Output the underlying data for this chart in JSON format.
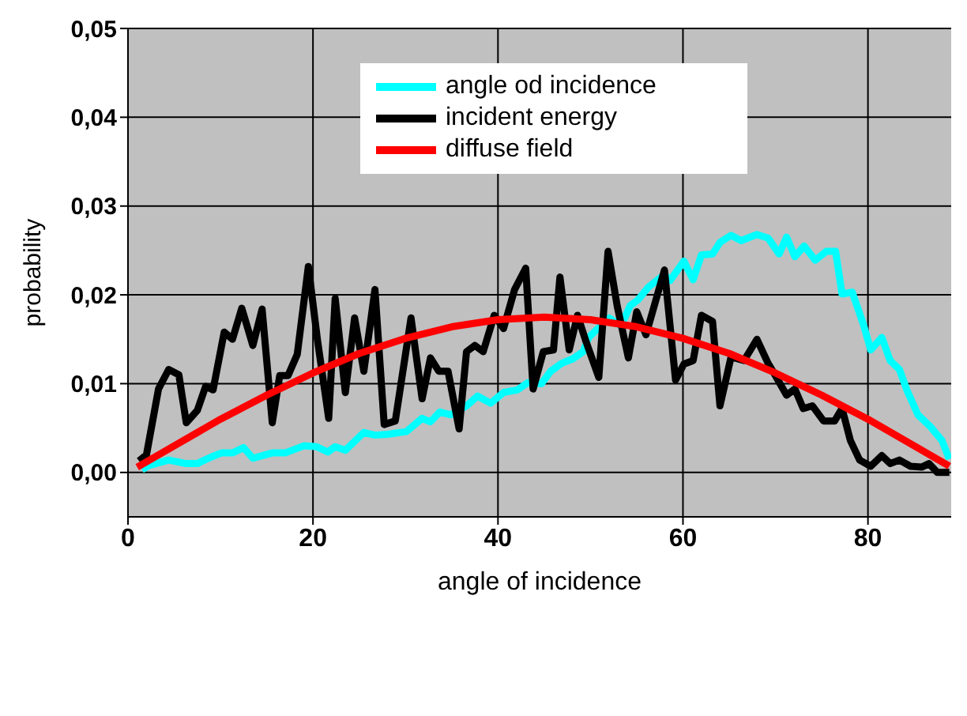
{
  "chart_data": {
    "type": "line",
    "xlabel": "angle of incidence",
    "ylabel": "probability",
    "xlim": [
      0,
      89
    ],
    "xticks": [
      0,
      20,
      40,
      60,
      80
    ],
    "ylim": [
      -0.005,
      0.05
    ],
    "yticks": [
      {
        "value": 0,
        "label": "0,00"
      },
      {
        "value": 0.01,
        "label": "0,01"
      },
      {
        "value": 0.02,
        "label": "0,02"
      },
      {
        "value": 0.03,
        "label": "0,03"
      },
      {
        "value": 0.04,
        "label": "0,04"
      },
      {
        "value": 0.05,
        "label": "0,05"
      }
    ],
    "grid": true,
    "legend": "top",
    "marker": "none",
    "line_style": "solid",
    "series": [
      {
        "name": "angle od incidence",
        "color": "#00ffff",
        "x": [
          1.5,
          2.3,
          4.4,
          6.3,
          7.5,
          8.9,
          10.1,
          11.3,
          12.5,
          13.5,
          15.6,
          17,
          19,
          20.4,
          21.6,
          22.4,
          23.5,
          25.5,
          26.7,
          28.1,
          30.1,
          31.8,
          32.7,
          33.7,
          34.9,
          36.6,
          37.8,
          39.2,
          40.6,
          42.1,
          43.2,
          44.7,
          45.7,
          46.9,
          48.1,
          49.2,
          49.8,
          52,
          53.3,
          54.3,
          55.1,
          56.3,
          58,
          58.6,
          60.1,
          61.1,
          62,
          63.2,
          64,
          65.2,
          66.3,
          68,
          69.2,
          70.4,
          71.2,
          72.1,
          73.1,
          74.3,
          75.5,
          76.5,
          77.2,
          78.3,
          79.5,
          80.3,
          81.5,
          82.4,
          83.4,
          84.2,
          85.4,
          86.8,
          88,
          88.8
        ],
        "values": [
          0.0003,
          0.0008,
          0.0014,
          0.001,
          0.001,
          0.0017,
          0.0022,
          0.0022,
          0.0028,
          0.0016,
          0.0022,
          0.0022,
          0.003,
          0.0029,
          0.0023,
          0.0029,
          0.0025,
          0.0045,
          0.0042,
          0.0043,
          0.0046,
          0.0061,
          0.0057,
          0.0068,
          0.0065,
          0.0075,
          0.0086,
          0.0078,
          0.009,
          0.0093,
          0.0101,
          0.01,
          0.0114,
          0.0123,
          0.0128,
          0.0136,
          0.0152,
          0.0174,
          0.0165,
          0.0188,
          0.0194,
          0.0209,
          0.0223,
          0.0216,
          0.0238,
          0.0217,
          0.0245,
          0.0246,
          0.0259,
          0.0267,
          0.0261,
          0.0268,
          0.0264,
          0.0246,
          0.0265,
          0.0243,
          0.0255,
          0.0239,
          0.0249,
          0.0249,
          0.0201,
          0.0203,
          0.0167,
          0.0138,
          0.0152,
          0.0126,
          0.0116,
          0.0093,
          0.0065,
          0.0051,
          0.0036,
          0.0015
        ]
      },
      {
        "name": "incident energy",
        "color": "#000000",
        "x": [
          1.2,
          2,
          3.3,
          4.4,
          5.5,
          6.3,
          7.5,
          8.4,
          9.2,
          10.4,
          11.3,
          12.3,
          13.5,
          14.5,
          15.6,
          16.4,
          17.3,
          18.3,
          19.5,
          20.5,
          21.7,
          22.4,
          23.5,
          24.5,
          25.5,
          26.7,
          27.7,
          28.9,
          30.6,
          31.8,
          32.7,
          33.6,
          34.6,
          35.8,
          36.6,
          37.5,
          38.4,
          39.6,
          40.6,
          41.8,
          43,
          43.8,
          44.9,
          46,
          46.7,
          47.7,
          48.6,
          49.5,
          50.9,
          51.9,
          52.9,
          54.1,
          55,
          56,
          58,
          59.2,
          60.1,
          61.1,
          62,
          63.2,
          64,
          65.2,
          66.6,
          68,
          69.2,
          70,
          71.2,
          72.1,
          73,
          74,
          75.2,
          76.4,
          77.2,
          78.1,
          79.1,
          80.3,
          81.5,
          82.4,
          83.4,
          84.6,
          85.8,
          86.6,
          87.5,
          88.8
        ],
        "values": [
          0.0013,
          0.002,
          0.0094,
          0.0116,
          0.011,
          0.0056,
          0.007,
          0.0097,
          0.0093,
          0.0158,
          0.015,
          0.0185,
          0.0143,
          0.0184,
          0.0056,
          0.0109,
          0.0109,
          0.0133,
          0.0232,
          0.0148,
          0.0061,
          0.0196,
          0.009,
          0.0174,
          0.0114,
          0.0206,
          0.0054,
          0.0058,
          0.0174,
          0.0083,
          0.0129,
          0.0114,
          0.0114,
          0.0049,
          0.0136,
          0.0143,
          0.0136,
          0.0177,
          0.0162,
          0.0206,
          0.023,
          0.0094,
          0.0136,
          0.0138,
          0.022,
          0.0138,
          0.0177,
          0.0148,
          0.0107,
          0.0249,
          0.0187,
          0.0129,
          0.0181,
          0.0155,
          0.0228,
          0.0104,
          0.0122,
          0.0126,
          0.0177,
          0.017,
          0.0075,
          0.013,
          0.0126,
          0.015,
          0.0123,
          0.0109,
          0.0087,
          0.0094,
          0.0072,
          0.0075,
          0.0058,
          0.0058,
          0.0072,
          0.0036,
          0.0014,
          0.0007,
          0.0019,
          0.001,
          0.0014,
          0.0007,
          0.0006,
          0.001,
          0,
          0
        ]
      },
      {
        "name": "diffuse field",
        "color": "#ff0000",
        "x": [
          1,
          5,
          10,
          15,
          20,
          25,
          30,
          35,
          40,
          45,
          50,
          55,
          60,
          65,
          70,
          75,
          80,
          85,
          88.8
        ],
        "values": [
          0.0006,
          0.003,
          0.006,
          0.0087,
          0.0112,
          0.0134,
          0.0151,
          0.0164,
          0.0172,
          0.0175,
          0.0172,
          0.0164,
          0.0151,
          0.0134,
          0.0112,
          0.0087,
          0.006,
          0.003,
          0.0007
        ]
      }
    ]
  }
}
